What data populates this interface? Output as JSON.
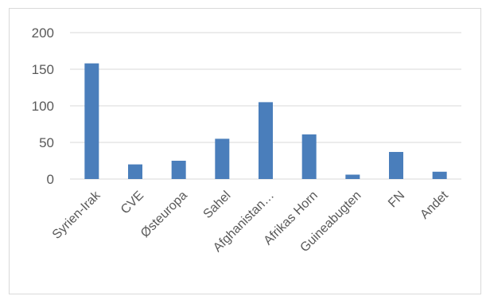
{
  "chart_data": {
    "type": "bar",
    "categories": [
      "Syrien-Irak",
      "CVE",
      "Østeuropa",
      "Sahel",
      "Afghanistan…",
      "Afrikas Horn",
      "Guineabugten",
      "FN",
      "Andet"
    ],
    "values": [
      158,
      20,
      25,
      55,
      105,
      61,
      6,
      37,
      10
    ],
    "yticks": [
      "0",
      "50",
      "100",
      "150",
      "200"
    ],
    "ylim": [
      0,
      200
    ],
    "grid": true,
    "legend": "none",
    "colors": {
      "bar": "#4a7ebb",
      "grid": "#d9d9d9",
      "text": "#595959",
      "border": "#d9d9d9"
    }
  }
}
